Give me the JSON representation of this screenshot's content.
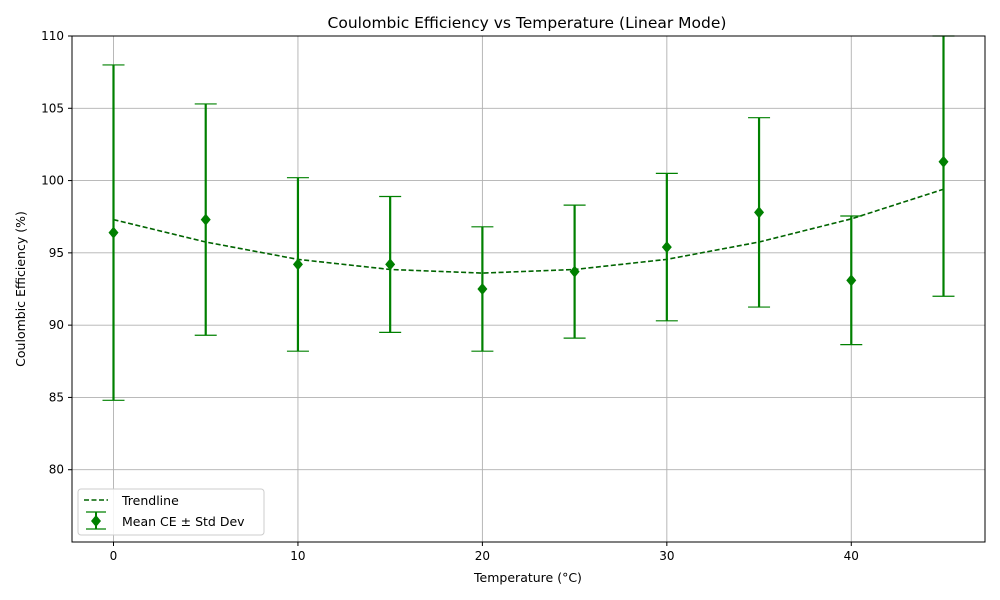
{
  "chart_data": {
    "type": "scatter",
    "title": "Coulombic Efficiency vs Temperature (Linear Mode)",
    "xlabel": "Temperature (°C)",
    "ylabel": "Coulombic Efficiency (%)",
    "xlim": [
      -2.25,
      47.25
    ],
    "ylim": [
      75,
      110
    ],
    "xticks": [
      0,
      10,
      20,
      30,
      40
    ],
    "yticks": [
      80,
      85,
      90,
      95,
      100,
      105,
      110
    ],
    "grid": true,
    "legend_position": "lower-left",
    "colors": {
      "marker": "#008000",
      "trend": "#006400",
      "grid": "#b0b0b0"
    },
    "series": [
      {
        "name": "Mean CE ± Std Dev",
        "type": "errorbar",
        "marker": "diamond",
        "x": [
          0,
          5,
          10,
          15,
          20,
          25,
          30,
          35,
          40,
          45
        ],
        "y": [
          96.4,
          97.3,
          94.2,
          94.2,
          92.5,
          93.7,
          95.4,
          97.8,
          93.1,
          101.3
        ],
        "yerr": [
          11.6,
          8.0,
          6.0,
          4.7,
          4.3,
          4.6,
          5.1,
          6.55,
          4.45,
          9.3
        ]
      },
      {
        "name": "Trendline",
        "type": "line",
        "style": "dashed",
        "x": [
          0,
          5,
          10,
          15,
          20,
          25,
          30,
          35,
          40,
          45
        ],
        "y": [
          97.3,
          95.75,
          94.55,
          93.85,
          93.6,
          93.85,
          94.55,
          95.75,
          97.35,
          99.4
        ]
      }
    ]
  }
}
